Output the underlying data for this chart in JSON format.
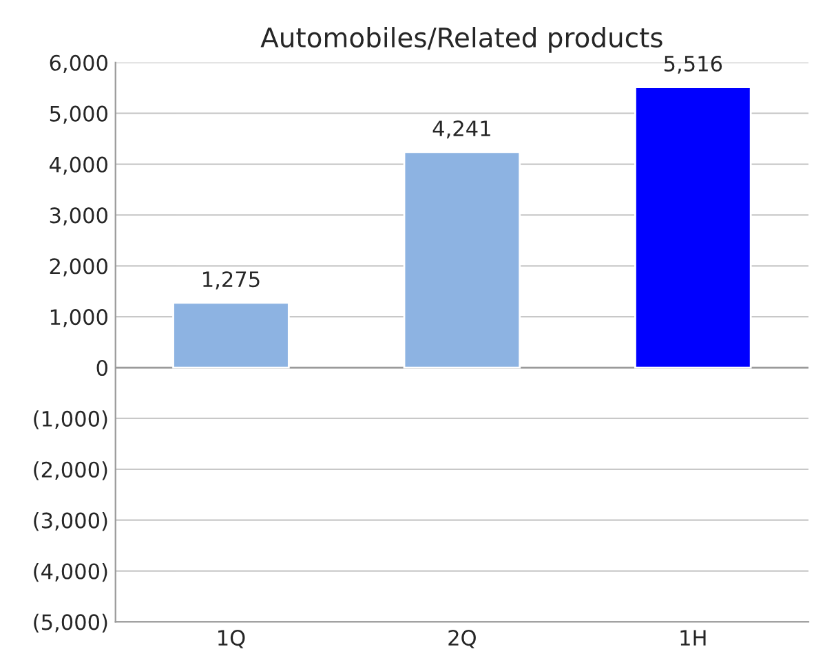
{
  "chart_data": {
    "type": "bar",
    "title": "Automobiles/Related products",
    "categories": [
      "1Q",
      "2Q",
      "1H"
    ],
    "values": [
      1275,
      4241,
      5516
    ],
    "colors": [
      "#8db3e2",
      "#8db3e2",
      "#0000ff"
    ],
    "value_labels": [
      "1,275",
      "4,241",
      "5,516"
    ],
    "ylim": [
      -5000,
      6000
    ],
    "yticks": [
      {
        "value": -5000,
        "label": "(5,000)"
      },
      {
        "value": -4000,
        "label": "(4,000)"
      },
      {
        "value": -3000,
        "label": "(3,000)"
      },
      {
        "value": -2000,
        "label": "(2,000)"
      },
      {
        "value": -1000,
        "label": "(1,000)"
      },
      0,
      {
        "value": 1000,
        "label": "1,000"
      },
      {
        "value": 2000,
        "label": "2,000"
      },
      {
        "value": 3000,
        "label": "3,000"
      },
      {
        "value": 4000,
        "label": "4,000"
      },
      {
        "value": 5000,
        "label": "5,000"
      },
      {
        "value": 6000,
        "label": "6,000"
      }
    ],
    "grid": "y",
    "legend": false
  }
}
